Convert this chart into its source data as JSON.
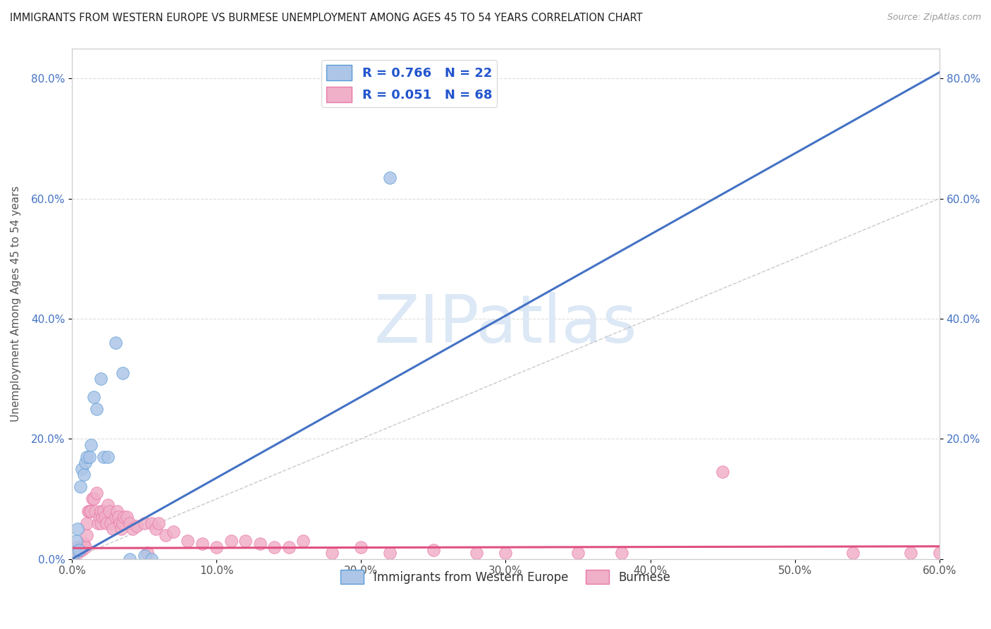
{
  "title": "IMMIGRANTS FROM WESTERN EUROPE VS BURMESE UNEMPLOYMENT AMONG AGES 45 TO 54 YEARS CORRELATION CHART",
  "source": "Source: ZipAtlas.com",
  "ylabel": "Unemployment Among Ages 45 to 54 years",
  "xlim": [
    0.0,
    0.6
  ],
  "ylim": [
    0.0,
    0.85
  ],
  "blue_R": 0.766,
  "blue_N": 22,
  "pink_R": 0.051,
  "pink_N": 68,
  "blue_scatter_x": [
    0.002,
    0.003,
    0.004,
    0.005,
    0.006,
    0.007,
    0.008,
    0.009,
    0.01,
    0.012,
    0.013,
    0.015,
    0.017,
    0.02,
    0.022,
    0.025,
    0.03,
    0.035,
    0.04,
    0.05,
    0.055,
    0.22
  ],
  "blue_scatter_y": [
    0.01,
    0.03,
    0.05,
    0.015,
    0.12,
    0.15,
    0.14,
    0.16,
    0.17,
    0.17,
    0.19,
    0.27,
    0.25,
    0.3,
    0.17,
    0.17,
    0.36,
    0.31,
    0.0,
    0.005,
    0.0,
    0.635
  ],
  "pink_scatter_x": [
    0.002,
    0.003,
    0.004,
    0.005,
    0.006,
    0.007,
    0.008,
    0.009,
    0.01,
    0.01,
    0.011,
    0.012,
    0.013,
    0.014,
    0.015,
    0.016,
    0.017,
    0.018,
    0.019,
    0.02,
    0.02,
    0.021,
    0.022,
    0.023,
    0.024,
    0.025,
    0.026,
    0.027,
    0.028,
    0.03,
    0.031,
    0.032,
    0.033,
    0.034,
    0.035,
    0.036,
    0.038,
    0.04,
    0.042,
    0.045,
    0.05,
    0.052,
    0.055,
    0.058,
    0.06,
    0.065,
    0.07,
    0.08,
    0.09,
    0.1,
    0.11,
    0.12,
    0.13,
    0.14,
    0.15,
    0.16,
    0.18,
    0.2,
    0.22,
    0.25,
    0.28,
    0.3,
    0.35,
    0.38,
    0.45,
    0.54,
    0.58,
    0.6
  ],
  "pink_scatter_y": [
    0.01,
    0.02,
    0.01,
    0.02,
    0.015,
    0.015,
    0.025,
    0.02,
    0.04,
    0.06,
    0.08,
    0.08,
    0.08,
    0.1,
    0.1,
    0.08,
    0.11,
    0.06,
    0.07,
    0.08,
    0.06,
    0.07,
    0.08,
    0.07,
    0.06,
    0.09,
    0.08,
    0.06,
    0.05,
    0.07,
    0.08,
    0.07,
    0.06,
    0.05,
    0.06,
    0.07,
    0.07,
    0.06,
    0.05,
    0.055,
    0.06,
    0.01,
    0.06,
    0.05,
    0.06,
    0.04,
    0.045,
    0.03,
    0.025,
    0.02,
    0.03,
    0.03,
    0.025,
    0.02,
    0.02,
    0.03,
    0.01,
    0.02,
    0.01,
    0.015,
    0.01,
    0.01,
    0.01,
    0.01,
    0.145,
    0.01,
    0.01,
    0.01
  ],
  "blue_line_color": "#4472c4",
  "pink_line_color": "#e05080",
  "blue_scatter_color": "#adc6e8",
  "pink_scatter_color": "#f0b0c8",
  "blue_scatter_edge": "#5b9bd5",
  "pink_scatter_edge": "#e878a8",
  "diagonal_color": "#bbbbbb",
  "watermark_text": "ZIPatlas",
  "watermark_color": "#dce8f5",
  "legend_label_blue": "R = 0.766   N = 22",
  "legend_label_pink": "R = 0.051   N = 68",
  "legend_label_blue_short": "Immigrants from Western Europe",
  "legend_label_pink_short": "Burmese",
  "background_color": "#ffffff",
  "grid_color": "#dddddd"
}
